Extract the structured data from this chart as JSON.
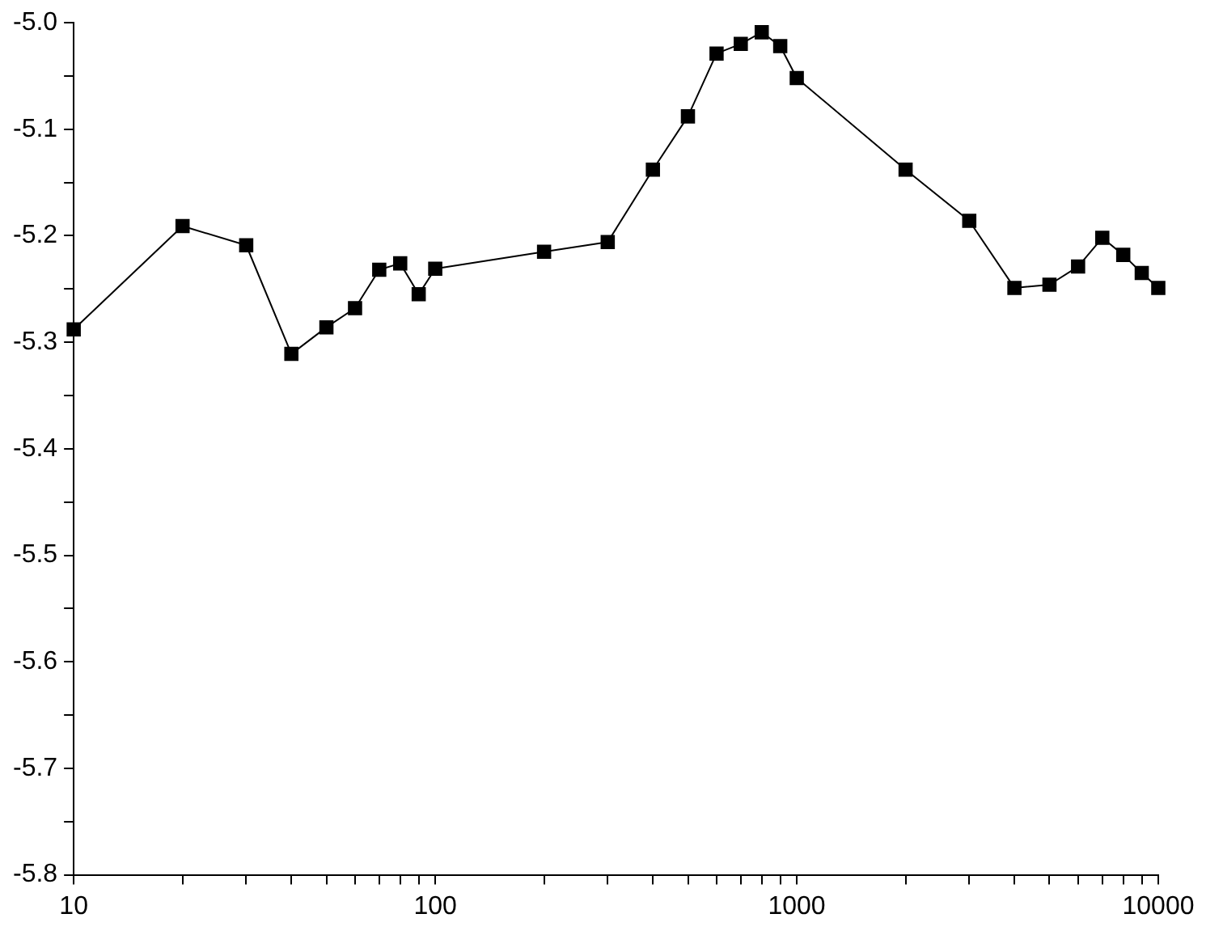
{
  "chart_data": {
    "type": "line",
    "log": "x",
    "marker": "square",
    "line_style": "solid",
    "grid": false,
    "legend": false,
    "x": [
      10,
      20,
      30,
      40,
      50,
      60,
      70,
      80,
      90,
      100,
      200,
      300,
      400,
      500,
      600,
      700,
      800,
      900,
      1000,
      2000,
      3000,
      4000,
      5000,
      6000,
      7000,
      8000,
      9000,
      10000
    ],
    "series": [
      {
        "color": "#000000",
        "values": [
          -5.288,
          -5.191,
          -5.209,
          -5.311,
          -5.286,
          -5.268,
          -5.232,
          -5.226,
          -5.255,
          -5.231,
          -5.215,
          -5.206,
          -5.138,
          -5.088,
          -5.029,
          -5.02,
          -5.009,
          -5.022,
          -5.052,
          -5.138,
          -5.186,
          -5.249,
          -5.246,
          -5.229,
          -5.202,
          -5.218,
          -5.235,
          -5.249
        ]
      }
    ],
    "xlim": [
      10,
      10000
    ],
    "xticks": [
      10,
      {
        "value": 20,
        "label": null
      },
      {
        "value": 30,
        "label": null
      },
      {
        "value": 40,
        "label": null
      },
      {
        "value": 50,
        "label": null
      },
      {
        "value": 60,
        "label": null
      },
      {
        "value": 70,
        "label": null
      },
      {
        "value": 80,
        "label": null
      },
      {
        "value": 90,
        "label": null
      },
      100,
      {
        "value": 200,
        "label": null
      },
      {
        "value": 300,
        "label": null
      },
      {
        "value": 400,
        "label": null
      },
      {
        "value": 500,
        "label": null
      },
      {
        "value": 600,
        "label": null
      },
      {
        "value": 700,
        "label": null
      },
      {
        "value": 800,
        "label": null
      },
      {
        "value": 900,
        "label": null
      },
      1000,
      {
        "value": 2000,
        "label": null
      },
      {
        "value": 3000,
        "label": null
      },
      {
        "value": 4000,
        "label": null
      },
      {
        "value": 5000,
        "label": null
      },
      {
        "value": 6000,
        "label": null
      },
      {
        "value": 7000,
        "label": null
      },
      {
        "value": 8000,
        "label": null
      },
      {
        "value": 9000,
        "label": null
      },
      10000
    ],
    "ylim": [
      -5.8,
      -5.0
    ],
    "yticks": [
      {
        "value": -5.8,
        "label": "-5.8"
      },
      {
        "value": -5.75,
        "label": null
      },
      {
        "value": -5.7,
        "label": "-5.7"
      },
      {
        "value": -5.65,
        "label": null
      },
      {
        "value": -5.6,
        "label": "-5.6"
      },
      {
        "value": -5.55,
        "label": null
      },
      {
        "value": -5.5,
        "label": "-5.5"
      },
      {
        "value": -5.45,
        "label": null
      },
      {
        "value": -5.4,
        "label": "-5.4"
      },
      {
        "value": -5.35,
        "label": null
      },
      {
        "value": -5.3,
        "label": "-5.3"
      },
      {
        "value": -5.25,
        "label": null
      },
      {
        "value": -5.2,
        "label": "-5.2"
      },
      {
        "value": -5.15,
        "label": null
      },
      {
        "value": -5.1,
        "label": "-5.1"
      },
      {
        "value": -5.05,
        "label": null
      },
      {
        "value": -5.0,
        "label": "-5.0"
      }
    ]
  }
}
